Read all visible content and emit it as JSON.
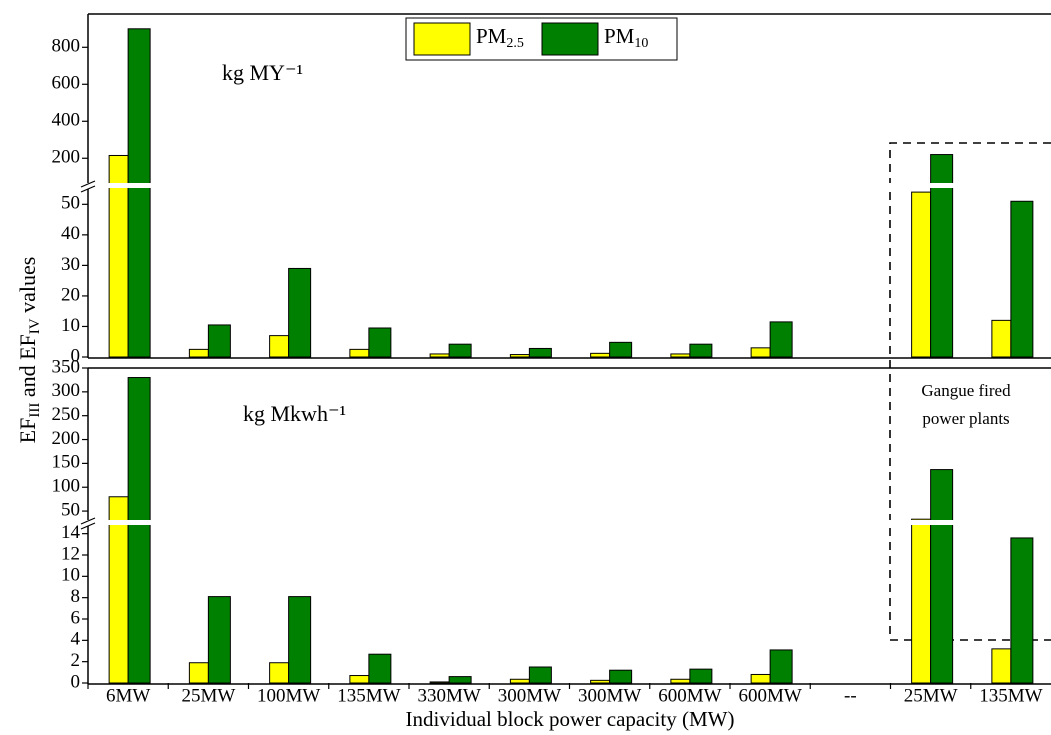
{
  "chart_data": [
    {
      "type": "bar",
      "unit_label": "kg MY⁻¹",
      "y_label": [
        "EF",
        "III",
        " and EF",
        "IV",
        " values"
      ],
      "segments": [
        {
          "ylim": [
            0,
            56
          ],
          "yticks": [
            0,
            10,
            20,
            30,
            40,
            50
          ]
        },
        {
          "ylim": [
            50,
            980
          ],
          "yticks": [
            200,
            400,
            600,
            800
          ]
        }
      ],
      "series": [
        {
          "name": "PM2.5",
          "color": "#ffff00",
          "values": [
            215,
            2.5,
            7,
            2.5,
            1,
            0.8,
            1.2,
            1,
            3,
            null,
            54,
            12
          ]
        },
        {
          "name": "PM10",
          "color": "#008000",
          "values": [
            900,
            10.5,
            29,
            9.5,
            4.2,
            2.8,
            4.8,
            4.2,
            11.5,
            null,
            220,
            51
          ]
        }
      ],
      "annotations": [
        "Gangue fired",
        "power plants"
      ]
    },
    {
      "type": "bar",
      "unit_label": "kg Mkwh⁻¹",
      "x_label": "Individual block power capacity (MW)",
      "categories": [
        "6MW",
        "25MW",
        "100MW",
        "135MW",
        "330MW",
        "300MW",
        "300MW",
        "600MW",
        "600MW",
        "--",
        "25MW",
        "135MW"
      ],
      "segments": [
        {
          "ylim": [
            0,
            15
          ],
          "yticks": [
            0,
            2,
            4,
            6,
            8,
            10,
            12,
            14
          ]
        },
        {
          "ylim": [
            25,
            350
          ],
          "yticks": [
            50,
            100,
            150,
            200,
            250,
            300,
            350
          ]
        }
      ],
      "series": [
        {
          "color": "#ffff00",
          "values": [
            80,
            1.9,
            1.9,
            0.7,
            0.1,
            0.35,
            0.25,
            0.35,
            0.8,
            null,
            33,
            3.2
          ]
        },
        {
          "color": "#008000",
          "values": [
            330,
            8.1,
            8.1,
            2.7,
            0.6,
            1.5,
            1.2,
            1.3,
            3.1,
            null,
            137,
            13.6
          ]
        }
      ]
    }
  ]
}
